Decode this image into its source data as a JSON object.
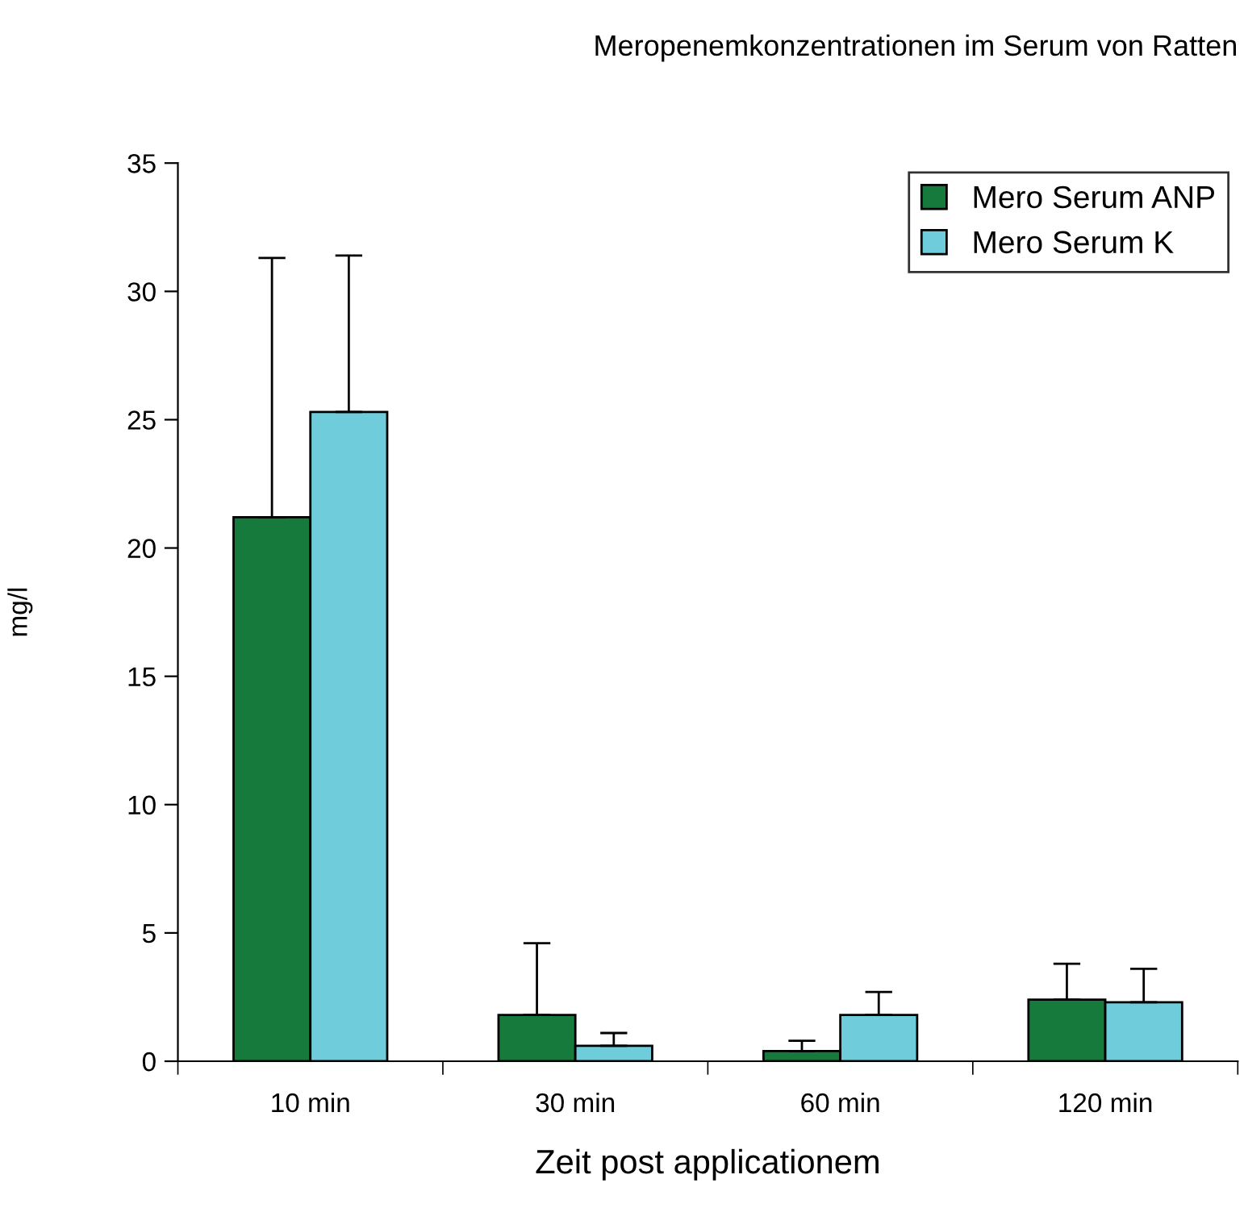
{
  "chart_data": {
    "type": "bar",
    "title": "Meropenemkonzentrationen im Serum von Ratten",
    "xlabel": "Zeit post applicationem",
    "ylabel": "mg/l",
    "categories": [
      "10 min",
      "30 min",
      "60 min",
      "120 min"
    ],
    "series": [
      {
        "name": "Mero Serum ANP",
        "color": "#157a3c",
        "values": [
          21.2,
          1.8,
          0.4,
          2.4
        ],
        "errors": [
          [
            21.2,
            31.3
          ],
          [
            1.8,
            4.6
          ],
          [
            0.4,
            0.8
          ],
          [
            2.4,
            3.8
          ]
        ]
      },
      {
        "name": "Mero Serum K",
        "color": "#6fcddb",
        "values": [
          25.3,
          0.6,
          1.8,
          2.3
        ],
        "errors": [
          [
            25.3,
            31.4
          ],
          [
            0.6,
            1.1
          ],
          [
            1.8,
            2.7
          ],
          [
            2.3,
            3.6
          ]
        ]
      }
    ],
    "ylim": [
      0,
      35
    ],
    "yticks": [
      0,
      5,
      10,
      15,
      20,
      25,
      30,
      35
    ],
    "grid": false,
    "legend": "top right"
  }
}
